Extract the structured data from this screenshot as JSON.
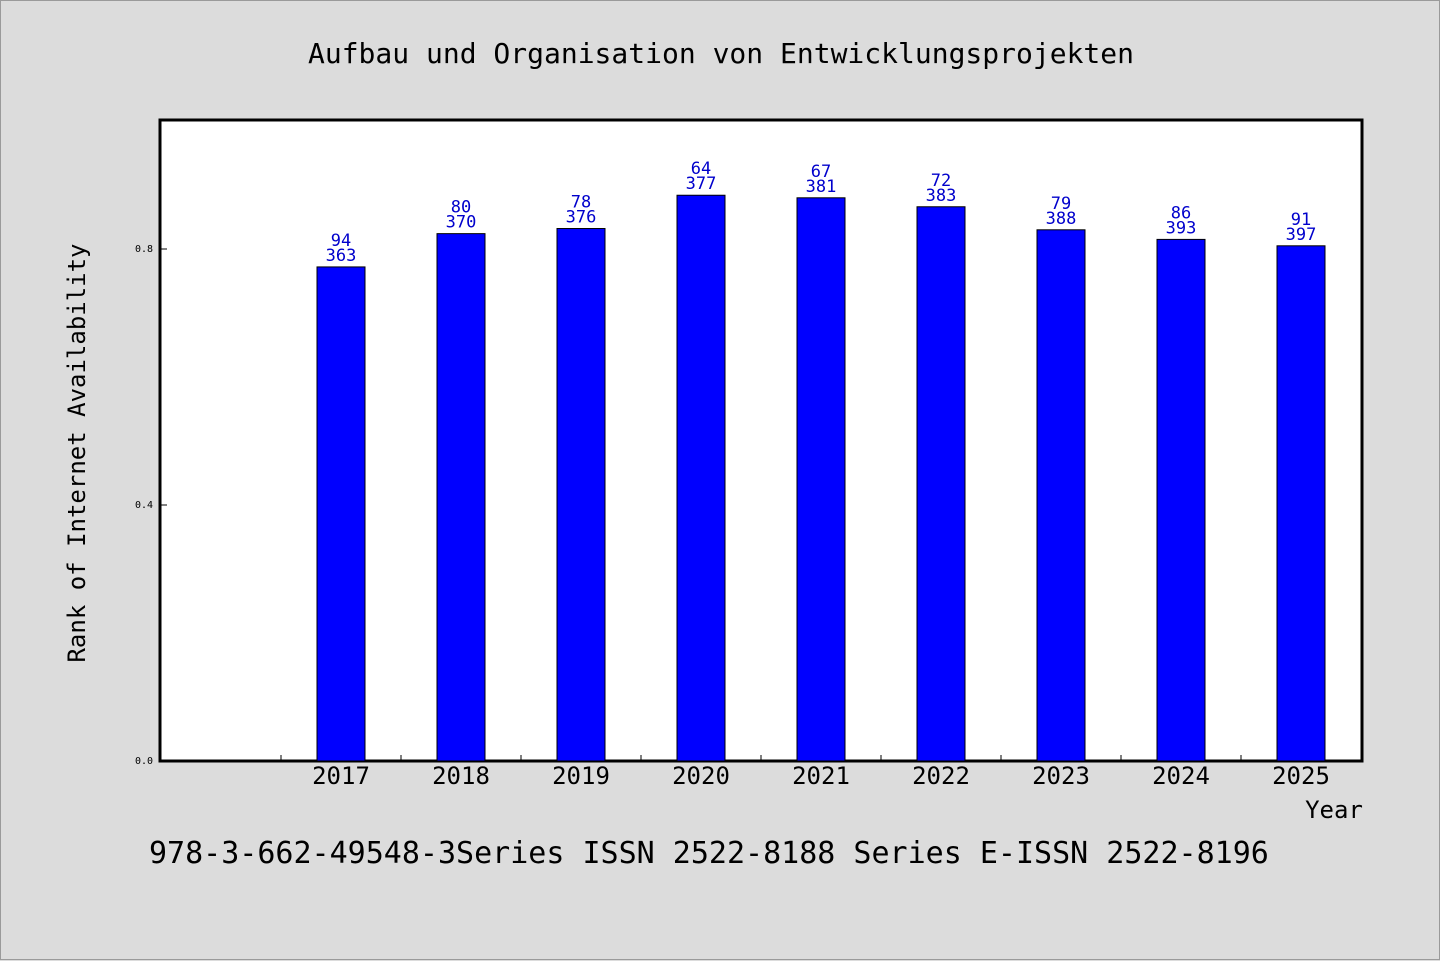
{
  "chart_data": {
    "type": "bar",
    "title": "Aufbau und Organisation von Entwicklungsprojekten",
    "xlabel": "Year",
    "ylabel": "Rank of Internet Availability",
    "categories": [
      "2017",
      "2018",
      "2019",
      "2020",
      "2021",
      "2022",
      "2023",
      "2024",
      "2025"
    ],
    "values": [
      0.772,
      0.824,
      0.832,
      0.884,
      0.88,
      0.866,
      0.83,
      0.815,
      0.805
    ],
    "value_labels_top": [
      "94",
      "80",
      "78",
      "64",
      "67",
      "72",
      "79",
      "86",
      "91"
    ],
    "value_labels_bottom": [
      "363",
      "370",
      "376",
      "377",
      "381",
      "383",
      "388",
      "393",
      "397"
    ],
    "y_ticks": [
      "0.0",
      "0.4",
      "0.8"
    ],
    "ylim": [
      0,
      1.0
    ],
    "bar_color": "#0000ff",
    "label_color": "#0000cc",
    "grid": false,
    "legend": "none"
  },
  "footer": {
    "text": "978-3-662-49548-3Series ISSN 2522-8188 Series E-ISSN 2522-8196"
  }
}
